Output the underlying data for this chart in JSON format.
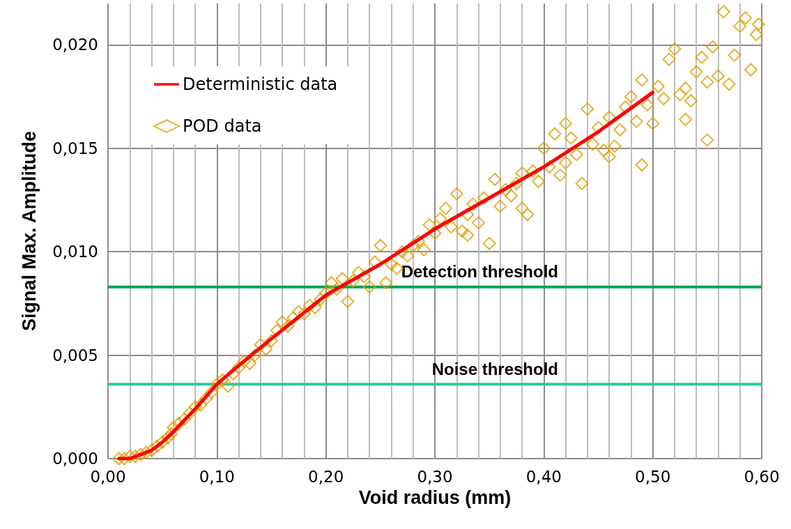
{
  "chart_data": {
    "type": "scatter",
    "xlabel": "Void radius (mm)",
    "ylabel": "Signal Max. Amplitude",
    "xlim": [
      0,
      0.6
    ],
    "xticks": [
      {
        "value": 0,
        "label": "0,00"
      },
      {
        "value": 0.1,
        "label": "0,10"
      },
      {
        "value": 0.2,
        "label": "0,20"
      },
      {
        "value": 0.3,
        "label": "0,30"
      },
      {
        "value": 0.4,
        "label": "0,40"
      },
      {
        "value": 0.5,
        "label": "0,50"
      },
      {
        "value": 0.6,
        "label": "0,60"
      }
    ],
    "ylim": [
      0,
      0.022
    ],
    "yticks": [
      {
        "value": 0,
        "label": "0,000"
      },
      {
        "value": 0.005,
        "label": "0,005"
      },
      {
        "value": 0.01,
        "label": "0,010"
      },
      {
        "value": 0.015,
        "label": "0,015"
      },
      {
        "value": 0.02,
        "label": "0,020"
      }
    ],
    "grid": true,
    "legend": "top left",
    "series": [
      {
        "name": "Deterministic data",
        "type": "line",
        "color": "#ff0000",
        "marker": "none",
        "line_style": "solid",
        "x": [
          0.01,
          0.02,
          0.03,
          0.04,
          0.05,
          0.06,
          0.08,
          0.1,
          0.12,
          0.15,
          0.2,
          0.25,
          0.3,
          0.35,
          0.4,
          0.45,
          0.5
        ],
        "values": [
          0,
          0,
          0.0002,
          0.0004,
          0.0008,
          0.0013,
          0.0024,
          0.0036,
          0.0045,
          0.0058,
          0.0079,
          0.0094,
          0.0111,
          0.0126,
          0.0141,
          0.0158,
          0.0177
        ]
      },
      {
        "name": "POD data",
        "type": "scatter",
        "color": "#dfa000",
        "marker": "diamond",
        "x": [
          0.01,
          0.015,
          0.02,
          0.025,
          0.03,
          0.035,
          0.04,
          0.045,
          0.05,
          0.055,
          0.058,
          0.06,
          0.065,
          0.07,
          0.075,
          0.08,
          0.085,
          0.09,
          0.095,
          0.1,
          0.105,
          0.11,
          0.115,
          0.12,
          0.125,
          0.13,
          0.135,
          0.14,
          0.145,
          0.15,
          0.155,
          0.16,
          0.165,
          0.17,
          0.175,
          0.18,
          0.185,
          0.19,
          0.195,
          0.2,
          0.205,
          0.21,
          0.215,
          0.22,
          0.225,
          0.23,
          0.235,
          0.24,
          0.245,
          0.25,
          0.255,
          0.26,
          0.265,
          0.27,
          0.275,
          0.28,
          0.285,
          0.29,
          0.295,
          0.3,
          0.305,
          0.31,
          0.315,
          0.32,
          0.325,
          0.33,
          0.335,
          0.34,
          0.345,
          0.35,
          0.355,
          0.36,
          0.365,
          0.37,
          0.375,
          0.38,
          0.385,
          0.39,
          0.395,
          0.4,
          0.405,
          0.41,
          0.415,
          0.42,
          0.425,
          0.43,
          0.435,
          0.44,
          0.445,
          0.45,
          0.455,
          0.46,
          0.465,
          0.47,
          0.475,
          0.48,
          0.485,
          0.49,
          0.495,
          0.5,
          0.505,
          0.51,
          0.515,
          0.52,
          0.525,
          0.53,
          0.535,
          0.54,
          0.545,
          0.55,
          0.555,
          0.56,
          0.565,
          0.57,
          0.575,
          0.58,
          0.585,
          0.59,
          0.595,
          0.597,
          0.55,
          0.53,
          0.49,
          0.46,
          0.42,
          0.38,
          0.33
        ],
        "values": [
          0,
          0,
          0.0001,
          0.0001,
          0.0002,
          0.0003,
          0.0004,
          0.0006,
          0.0008,
          0.001,
          0.0012,
          0.0015,
          0.0017,
          0.0019,
          0.0022,
          0.0025,
          0.0026,
          0.0029,
          0.0032,
          0.0036,
          0.0038,
          0.0035,
          0.0041,
          0.0044,
          0.0047,
          0.0046,
          0.005,
          0.0055,
          0.0053,
          0.0057,
          0.0062,
          0.0066,
          0.0064,
          0.0068,
          0.0071,
          0.007,
          0.0074,
          0.0073,
          0.0077,
          0.008,
          0.0085,
          0.0082,
          0.0087,
          0.0076,
          0.0086,
          0.009,
          0.0088,
          0.0083,
          0.0095,
          0.0103,
          0.0085,
          0.0094,
          0.0092,
          0.01,
          0.0098,
          0.0103,
          0.0105,
          0.0101,
          0.0113,
          0.0109,
          0.0116,
          0.0121,
          0.0112,
          0.0128,
          0.011,
          0.0118,
          0.0123,
          0.0114,
          0.0126,
          0.0104,
          0.0135,
          0.0122,
          0.013,
          0.0127,
          0.0133,
          0.0121,
          0.0118,
          0.0139,
          0.0134,
          0.015,
          0.0141,
          0.0157,
          0.0137,
          0.0143,
          0.0155,
          0.0147,
          0.0133,
          0.0169,
          0.0152,
          0.016,
          0.0149,
          0.0165,
          0.0151,
          0.0159,
          0.017,
          0.0175,
          0.0163,
          0.0142,
          0.0171,
          0.0162,
          0.018,
          0.0174,
          0.0193,
          0.0198,
          0.0176,
          0.0164,
          0.0173,
          0.0187,
          0.0194,
          0.0154,
          0.0199,
          0.0185,
          0.0216,
          0.0181,
          0.0195,
          0.0209,
          0.0213,
          0.0188,
          0.0205,
          0.021,
          0.0182,
          0.0179,
          0.0183,
          0.0146,
          0.0162,
          0.0138,
          0.0108
        ]
      }
    ],
    "ref_lines": [
      {
        "axis": "y",
        "value": 0.0083,
        "label": "Detection threshold",
        "color": "#00a650"
      },
      {
        "axis": "y",
        "value": 0.0036,
        "label": "Noise threshold",
        "color": "#1ecfa0"
      }
    ]
  }
}
